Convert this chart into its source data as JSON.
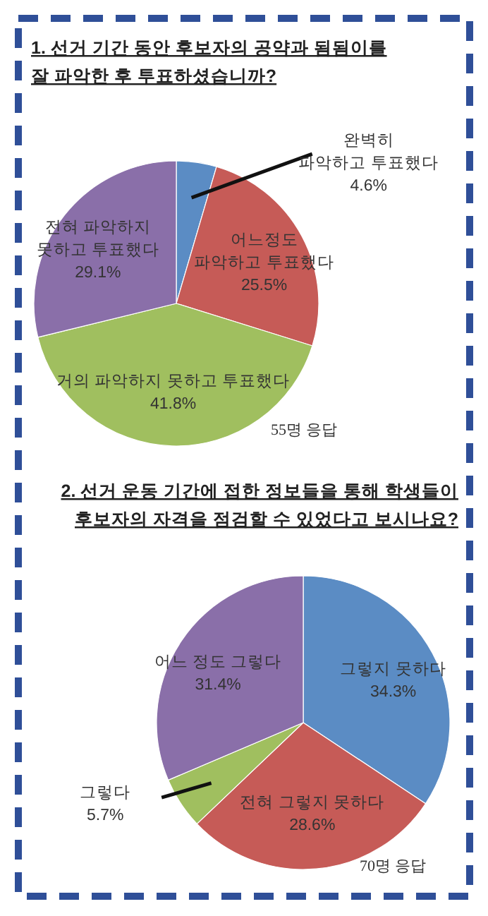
{
  "chart_data": [
    {
      "type": "pie",
      "title": "1. 선거 기간 동안 후보자의 공약과 됨됨이를\n잘 파악한 후 투표하셨습니까?",
      "categories": [
        "완벽히\n파악하고 투표했다",
        "어느정도\n파악하고 투표했다",
        "거의 파악하지 못하고 투표했다",
        "전혀 파악하지\n못하고 투표했다"
      ],
      "values": [
        4.6,
        25.5,
        41.8,
        29.1
      ],
      "colors": [
        "#5b8cc4",
        "#c65b57",
        "#a0bf5f",
        "#8a6fa9"
      ],
      "value_labels": [
        "4.6%",
        "25.5%",
        "41.8%",
        "29.1%"
      ],
      "annotations": [
        "55명 응답"
      ]
    },
    {
      "type": "pie",
      "title": "2. 선거 운동 기간에 접한 정보들을 통해 학생들이\n후보자의 자격을 점검할 수 있었다고 보시나요?",
      "categories": [
        "그렇지 못하다",
        "전혀 그렇지 못하다",
        "그렇다",
        "어느 정도 그렇다"
      ],
      "values": [
        34.3,
        28.6,
        5.7,
        31.4
      ],
      "colors": [
        "#5b8cc4",
        "#c65b57",
        "#a0bf5f",
        "#8a6fa9"
      ],
      "value_labels": [
        "34.3%",
        "28.6%",
        "5.7%",
        "31.4%"
      ],
      "annotations": [
        "70명 응답"
      ]
    }
  ]
}
